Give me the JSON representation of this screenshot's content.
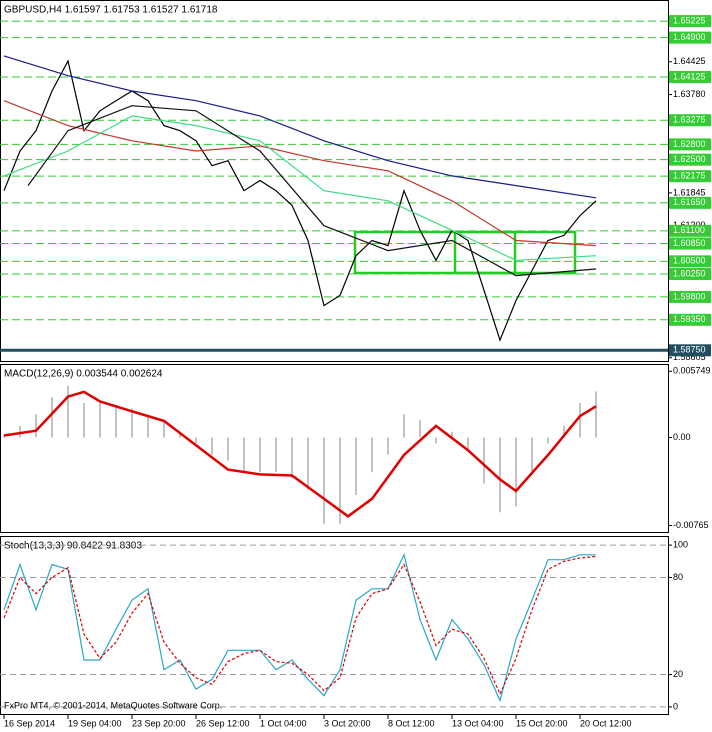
{
  "chart_data": [
    {
      "type": "line",
      "title": "GBPUSD,H4  1.61597 1.61753 1.61527 1.61718",
      "xlim": [
        -1,
        166
      ],
      "ylim": [
        1.5852,
        1.6562
      ],
      "grid": false,
      "yticks": [
        {
          "value": 1.64425,
          "label": "1.64425"
        },
        {
          "value": 1.6378,
          "label": "1.63780"
        },
        {
          "value": 1.61845,
          "label": "1.61845"
        },
        {
          "value": 1.612,
          "label": "1.61200"
        },
        {
          "value": 1.58605,
          "label": "1.58605"
        }
      ],
      "levels": [
        {
          "value": 1.65225,
          "label": "1.65225"
        },
        {
          "value": 1.649,
          "label": "1.64900"
        },
        {
          "value": 1.64125,
          "label": "1.64125"
        },
        {
          "value": 1.63275,
          "label": "1.63275"
        },
        {
          "value": 1.628,
          "label": "1.62800"
        },
        {
          "value": 1.625,
          "label": "1.62500"
        },
        {
          "value": 1.62175,
          "label": "1.62175"
        },
        {
          "value": 1.6165,
          "label": "1.61650"
        },
        {
          "value": 1.611,
          "label": "1.61100"
        },
        {
          "value": 1.6085,
          "label": "1.60850"
        },
        {
          "value": 1.605,
          "label": "1.60500"
        },
        {
          "value": 1.6025,
          "label": "1.60250"
        },
        {
          "value": 1.598,
          "label": "1.59800"
        },
        {
          "value": 1.5935,
          "label": "1.59350"
        }
      ],
      "level_color": "#33cc33",
      "key_level": {
        "value": 1.5875,
        "label": "1.58750"
      },
      "key_level_color": "#1f4f5f",
      "series": [
        {
          "color": "#000000",
          "x": [
            0,
            4,
            8,
            12,
            16,
            20,
            24,
            28,
            32,
            36,
            40,
            44,
            48,
            52,
            56,
            60,
            64,
            68,
            72,
            76,
            80,
            84,
            88,
            92,
            96,
            100,
            104,
            108,
            112,
            116,
            120,
            124,
            128,
            132,
            136,
            140,
            144,
            148
          ],
          "values": [
            1.6189,
            1.6267,
            1.6307,
            1.6385,
            1.6444,
            1.6307,
            1.6346,
            1.6366,
            1.6385,
            1.6366,
            1.6317,
            1.6307,
            1.6287,
            1.6238,
            1.6248,
            1.6189,
            1.6209,
            1.6189,
            1.616,
            1.6091,
            1.5963,
            1.5983,
            1.6061,
            1.6091,
            1.6081,
            1.6189,
            1.6111,
            1.6052,
            1.6111,
            1.6091,
            1.5993,
            1.5895,
            1.5973,
            1.6032,
            1.6091,
            1.6101,
            1.614,
            1.6169
          ]
        },
        {
          "color": "#1a1a8c",
          "x": [
            0,
            16,
            32,
            48,
            64,
            80,
            96,
            112,
            128,
            148
          ],
          "values": [
            1.6454,
            1.6415,
            1.6385,
            1.6366,
            1.6336,
            1.6287,
            1.6248,
            1.6218,
            1.6199,
            1.6175
          ]
        },
        {
          "color": "#c0392b",
          "x": [
            0,
            16,
            32,
            48,
            64,
            80,
            96,
            112,
            128,
            148
          ],
          "values": [
            1.6366,
            1.6317,
            1.6287,
            1.6267,
            1.6277,
            1.6248,
            1.6228,
            1.6169,
            1.6091,
            1.6081
          ]
        },
        {
          "color": "#3ddc84",
          "x": [
            0,
            16,
            32,
            48,
            64,
            80,
            96,
            112,
            128,
            148
          ],
          "values": [
            1.6218,
            1.6267,
            1.6336,
            1.6317,
            1.6287,
            1.6189,
            1.6169,
            1.6111,
            1.6052,
            1.6061
          ]
        },
        {
          "color": "#111111",
          "x": [
            6,
            16,
            32,
            48,
            64,
            80,
            96,
            112,
            128,
            148
          ],
          "values": [
            1.6199,
            1.6307,
            1.6356,
            1.6346,
            1.6267,
            1.612,
            1.6071,
            1.6091,
            1.6022,
            1.6035
          ]
        }
      ]
    },
    {
      "type": "line",
      "title": "MACD(12,26,9) 0.003544 0.002624",
      "xlim": [
        -1,
        166
      ],
      "ylim": [
        -0.0083,
        0.0063
      ],
      "grid": false,
      "yticks": [
        0.005749,
        {
          "value": 0,
          "label": "0.00"
        },
        -0.00765
      ],
      "series": [
        {
          "style": "bar",
          "color": "#9a9a9a",
          "x": [
            0,
            4,
            8,
            12,
            16,
            20,
            24,
            28,
            32,
            36,
            40,
            44,
            48,
            52,
            56,
            60,
            64,
            68,
            72,
            76,
            80,
            84,
            88,
            92,
            96,
            100,
            104,
            108,
            112,
            116,
            120,
            124,
            128,
            132,
            136,
            140,
            144,
            148
          ],
          "values": [
            0.0002,
            0.001,
            0.002,
            0.0035,
            0.0045,
            0.003,
            0.003,
            0.0028,
            0.0025,
            0.002,
            0.0015,
            0.0005,
            -0.0005,
            -0.0015,
            -0.002,
            -0.003,
            -0.003,
            -0.003,
            -0.0035,
            -0.0045,
            -0.0075,
            -0.0075,
            -0.005,
            -0.003,
            -0.0015,
            0.002,
            0.0015,
            -0.0005,
            0.0005,
            -0.001,
            -0.004,
            -0.0065,
            -0.006,
            -0.003,
            -0.0005,
            0.001,
            0.003,
            0.004
          ]
        },
        {
          "style": "line",
          "color": "#e00000",
          "x": [
            0,
            8,
            16,
            20,
            24,
            32,
            40,
            48,
            56,
            64,
            72,
            80,
            86,
            92,
            100,
            108,
            116,
            124,
            128,
            136,
            144,
            148
          ],
          "values": [
            0.00017,
            0.00059,
            0.00355,
            0.00397,
            0.00313,
            0.00228,
            0.00144,
            -0.00068,
            -0.00279,
            -0.00321,
            -0.0033,
            -0.00533,
            -0.00685,
            -0.00533,
            -0.00152,
            0.00101,
            -0.0011,
            -0.00364,
            -0.00465,
            -0.00152,
            0.00186,
            0.00271
          ]
        }
      ]
    },
    {
      "type": "line",
      "title": "Stoch(13,3,3) 90.8422 91.8303",
      "annotation": "FxPro MT4, © 2001-2014, MetaQuotes Software Corp.",
      "xlim": [
        -1,
        166
      ],
      "ylim": [
        -5,
        105
      ],
      "grid": true,
      "yticks": [
        100,
        80,
        20,
        0
      ],
      "xticks": [
        {
          "value": 0,
          "label": "16 Sep 2014"
        },
        {
          "value": 16,
          "label": "19 Sep 04:00"
        },
        {
          "value": 32,
          "label": "23 Sep 20:00"
        },
        {
          "value": 48,
          "label": "26 Sep 12:00"
        },
        {
          "value": 64,
          "label": "1 Oct 04:00"
        },
        {
          "value": 80,
          "label": "3 Oct 20:00"
        },
        {
          "value": 96,
          "label": "8 Oct 12:00"
        },
        {
          "value": 112,
          "label": "13 Oct 04:00"
        },
        {
          "value": 128,
          "label": "15 Oct 20:00"
        },
        {
          "value": 144,
          "label": "20 Oct 12:00"
        }
      ],
      "series": [
        {
          "style": "line",
          "color": "#2aa7c9",
          "x": [
            0,
            4,
            8,
            12,
            16,
            20,
            24,
            28,
            32,
            36,
            40,
            44,
            48,
            52,
            56,
            60,
            64,
            68,
            72,
            76,
            80,
            84,
            88,
            92,
            96,
            100,
            104,
            108,
            112,
            116,
            120,
            124,
            128,
            132,
            136,
            140,
            144,
            148
          ],
          "values": [
            60,
            88,
            60,
            88,
            85,
            29,
            29,
            48,
            66,
            73,
            23,
            29,
            11,
            17,
            35,
            35,
            35,
            23,
            29,
            17,
            7,
            23,
            66,
            73,
            73,
            94,
            54,
            29,
            54,
            42,
            26,
            4,
            42,
            66,
            91,
            91,
            94,
            94
          ]
        },
        {
          "style": "dashed",
          "color": "#e00000",
          "x": [
            0,
            4,
            8,
            12,
            16,
            20,
            24,
            28,
            32,
            36,
            40,
            44,
            48,
            52,
            56,
            60,
            64,
            68,
            72,
            76,
            80,
            84,
            88,
            92,
            96,
            100,
            104,
            108,
            112,
            116,
            120,
            124,
            128,
            132,
            136,
            140,
            144,
            148
          ],
          "values": [
            55,
            80,
            70,
            80,
            86,
            45,
            30,
            40,
            58,
            70,
            40,
            27,
            18,
            14,
            28,
            33,
            35,
            28,
            27,
            20,
            10,
            18,
            55,
            70,
            73,
            88,
            65,
            38,
            48,
            45,
            30,
            8,
            30,
            60,
            85,
            90,
            92,
            93
          ]
        }
      ]
    }
  ]
}
